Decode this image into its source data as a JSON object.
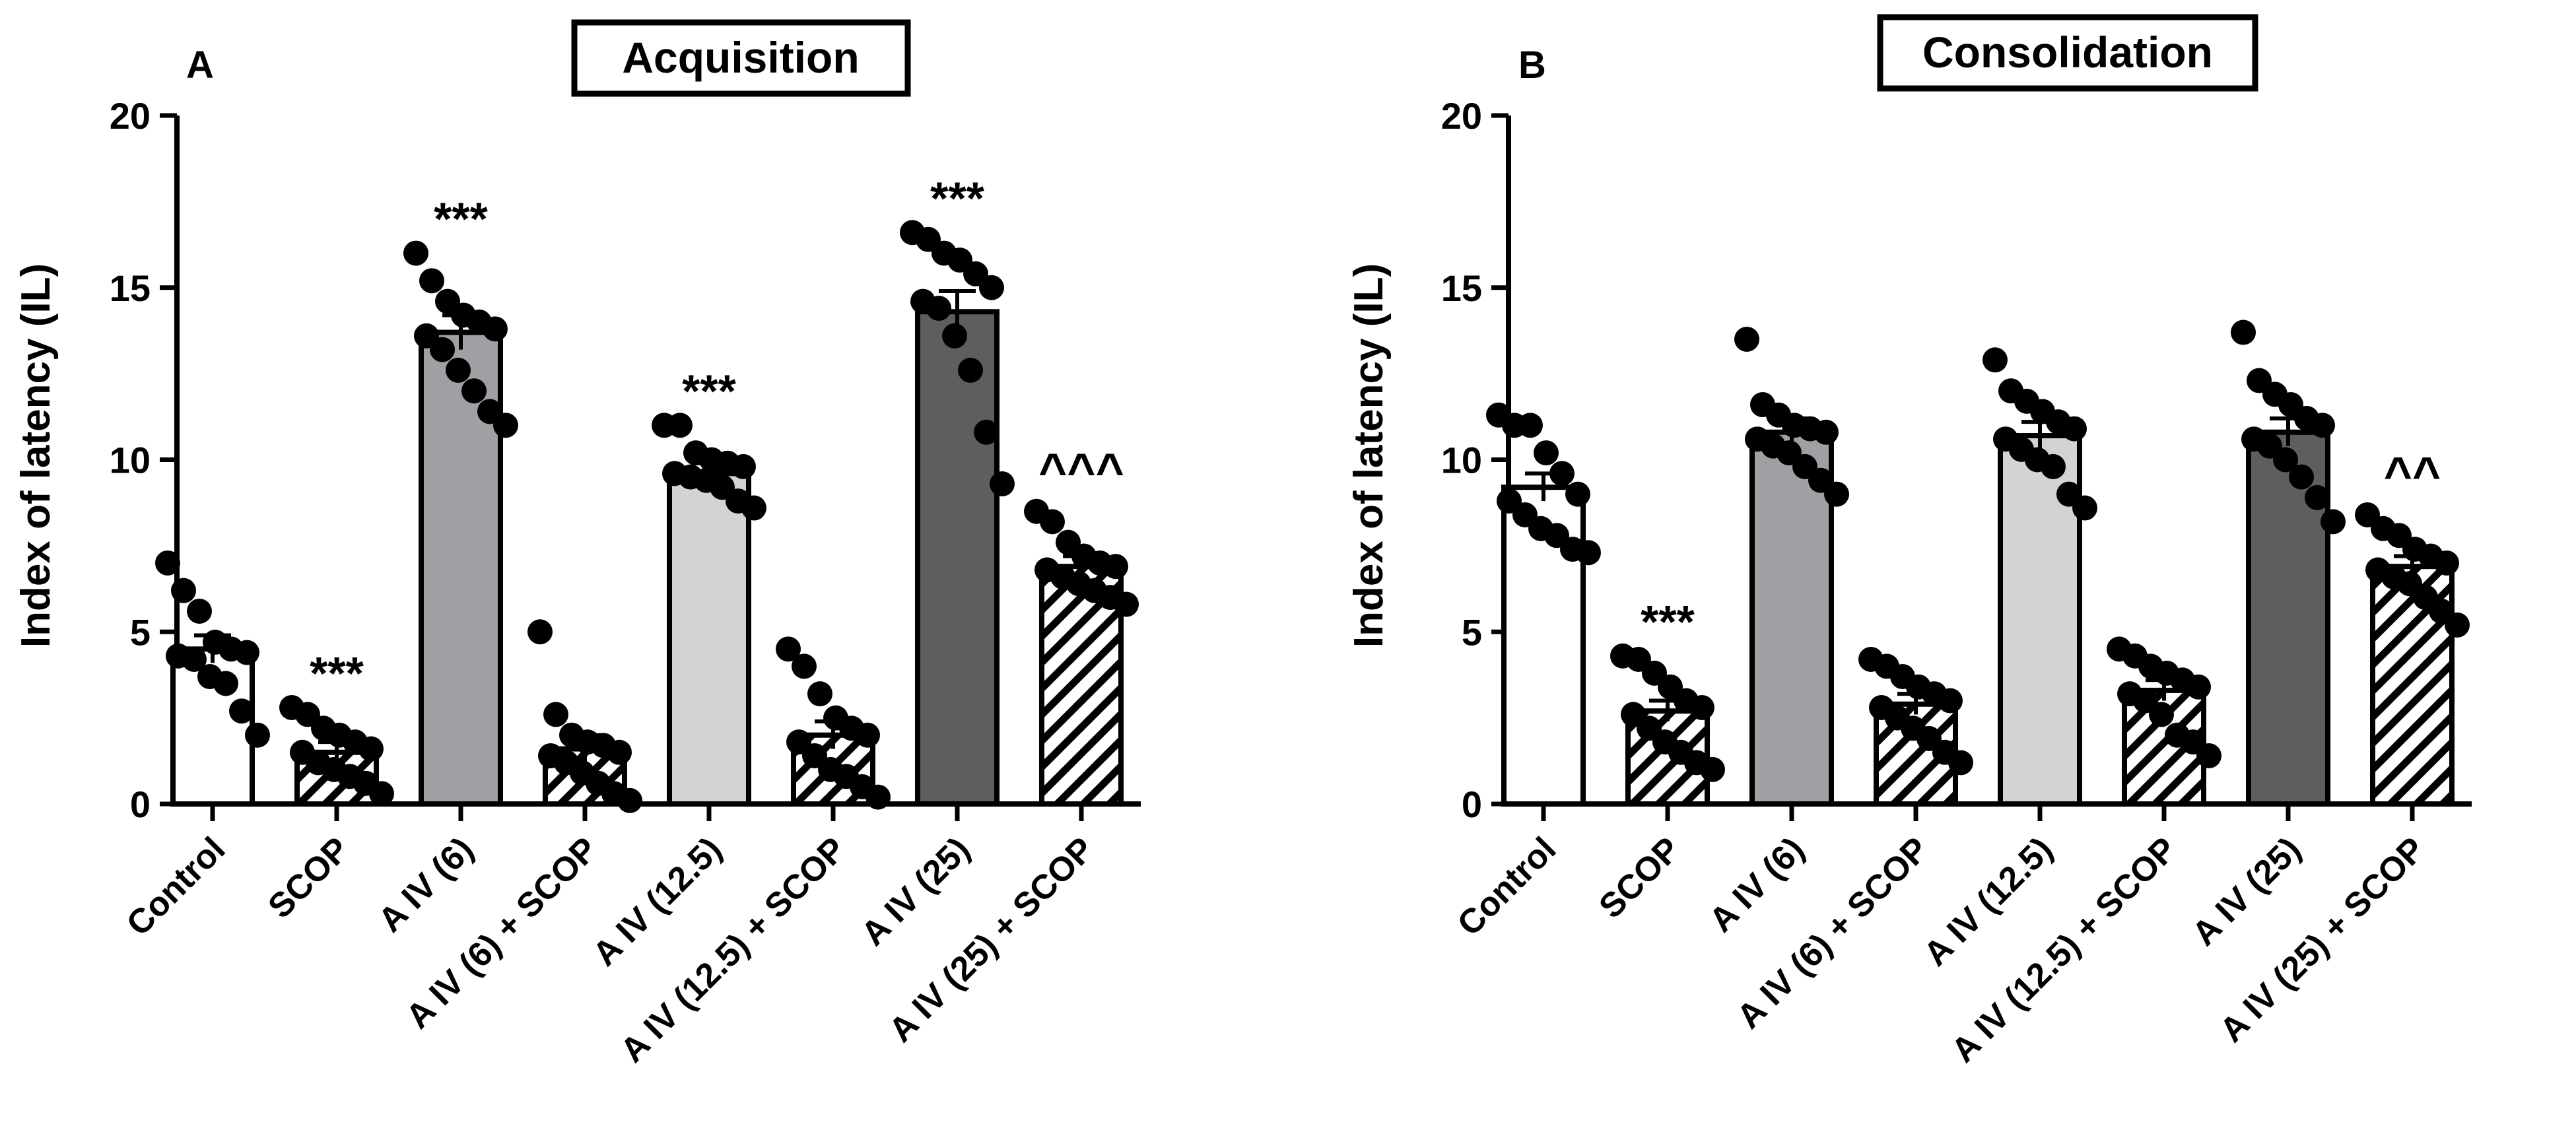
{
  "colors": {
    "ink": "#000000",
    "bar_white": "#ffffff",
    "bar_light_gray": "#d3d3d3",
    "bar_mid_gray": "#a0a0a4",
    "bar_dark_gray": "#5e5e5e",
    "hatch_fill": "#ffffff",
    "hatch_line": "#000000"
  },
  "chart_data": [
    {
      "type": "bar",
      "panel_letter": "A",
      "title": "Acquisition",
      "xlabel": "",
      "ylabel": "Index of latency (IL)",
      "ylim": [
        0,
        20
      ],
      "yticks": [
        "0",
        "5",
        "10",
        "15",
        "20"
      ],
      "grid": false,
      "categories": [
        "Control",
        "SCOP",
        "A IV (6)",
        "A IV (6) + SCOP",
        "A IV (12.5)",
        "A IV (12.5) + SCOP",
        "A IV (25)",
        "A IV (25) + SCOP"
      ],
      "fills": [
        "white",
        "hatch",
        "mid",
        "hatch",
        "light",
        "hatch",
        "dark",
        "hatch"
      ],
      "values": [
        4.5,
        1.5,
        13.7,
        1.6,
        9.6,
        2.0,
        14.3,
        6.9
      ],
      "errors": [
        0.4,
        0.3,
        0.5,
        0.4,
        0.3,
        0.4,
        0.6,
        0.3
      ],
      "annotations": [
        "",
        "***",
        "***",
        "",
        "***",
        "",
        "***",
        "^^^"
      ],
      "points": [
        [
          7.0,
          6.2,
          5.6,
          4.7,
          4.5,
          4.4,
          4.3,
          4.2,
          3.7,
          3.5,
          2.7,
          2.0
        ],
        [
          2.8,
          2.6,
          2.2,
          2.0,
          1.8,
          1.6,
          1.5,
          1.2,
          1.0,
          0.8,
          0.6,
          0.3
        ],
        [
          16.0,
          15.2,
          14.6,
          14.2,
          14.0,
          13.8,
          13.6,
          13.2,
          12.6,
          12.0,
          11.4,
          11.0
        ],
        [
          5.0,
          2.6,
          2.0,
          1.8,
          1.7,
          1.5,
          1.4,
          1.2,
          0.9,
          0.6,
          0.3,
          0.1
        ],
        [
          11.0,
          11.0,
          10.2,
          10.0,
          9.9,
          9.8,
          9.6,
          9.5,
          9.4,
          9.2,
          8.8,
          8.6
        ],
        [
          4.5,
          4.0,
          3.2,
          2.5,
          2.2,
          2.0,
          1.8,
          1.4,
          1.0,
          0.8,
          0.5,
          0.2
        ],
        [
          16.6,
          16.4,
          16.0,
          15.8,
          15.4,
          15.0,
          14.6,
          14.4,
          13.6,
          12.6,
          10.8,
          9.3
        ],
        [
          8.5,
          8.2,
          7.6,
          7.2,
          7.0,
          6.9,
          6.8,
          6.6,
          6.4,
          6.2,
          6.0,
          5.8
        ]
      ]
    },
    {
      "type": "bar",
      "panel_letter": "B",
      "title": "Consolidation",
      "xlabel": "",
      "ylabel": "Index of latency (IL)",
      "ylim": [
        0,
        20
      ],
      "yticks": [
        "0",
        "5",
        "10",
        "15",
        "20"
      ],
      "grid": false,
      "categories": [
        "Control",
        "SCOP",
        "A IV (6)",
        "A IV (6) + SCOP",
        "A IV (12.5)",
        "A IV (12.5) + SCOP",
        "A IV (25)",
        "A IV (25) + SCOP"
      ],
      "fills": [
        "white",
        "hatch",
        "mid",
        "hatch",
        "light",
        "hatch",
        "dark",
        "hatch"
      ],
      "values": [
        9.2,
        2.7,
        10.8,
        2.9,
        10.7,
        3.3,
        10.8,
        6.9
      ],
      "errors": [
        0.4,
        0.3,
        0.4,
        0.3,
        0.4,
        0.3,
        0.4,
        0.3
      ],
      "annotations": [
        "",
        "***",
        "",
        "",
        "",
        "",
        "",
        "^^"
      ],
      "points": [
        [
          11.3,
          11.0,
          11.0,
          10.2,
          9.6,
          9.0,
          8.8,
          8.4,
          8.0,
          7.8,
          7.4,
          7.3
        ],
        [
          4.3,
          4.2,
          3.8,
          3.4,
          3.0,
          2.8,
          2.6,
          2.2,
          1.8,
          1.5,
          1.2,
          1.0
        ],
        [
          13.5,
          11.6,
          11.3,
          11.0,
          10.9,
          10.8,
          10.6,
          10.4,
          10.2,
          9.8,
          9.4,
          9.0
        ],
        [
          4.2,
          4.0,
          3.7,
          3.4,
          3.2,
          3.0,
          2.8,
          2.5,
          2.2,
          1.9,
          1.5,
          1.2
        ],
        [
          12.9,
          12.0,
          11.7,
          11.4,
          11.1,
          10.9,
          10.6,
          10.3,
          10.0,
          9.8,
          9.0,
          8.6
        ],
        [
          4.5,
          4.3,
          4.0,
          3.8,
          3.6,
          3.4,
          3.2,
          3.0,
          2.6,
          2.0,
          1.8,
          1.4
        ],
        [
          13.7,
          12.3,
          11.9,
          11.6,
          11.2,
          11.0,
          10.6,
          10.4,
          10.0,
          9.5,
          8.9,
          8.2
        ],
        [
          8.4,
          8.0,
          7.8,
          7.4,
          7.2,
          7.0,
          6.8,
          6.6,
          6.4,
          6.0,
          5.6,
          5.2
        ]
      ]
    }
  ]
}
